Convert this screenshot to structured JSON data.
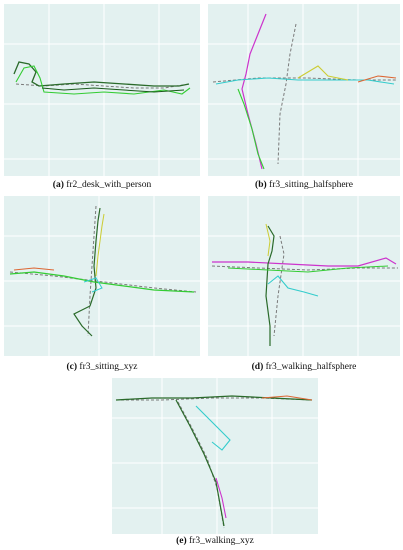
{
  "figure": {
    "panels": [
      {
        "letter": "(a)",
        "label": "fr2_desk_with_person"
      },
      {
        "letter": "(b)",
        "label": "fr3_sitting_halfsphere"
      },
      {
        "letter": "(c)",
        "label": "fr3_sitting_xyz"
      },
      {
        "letter": "(d)",
        "label": "fr3_walking_halfsphere"
      },
      {
        "letter": "(e)",
        "label": "fr3_walking_xyz"
      }
    ],
    "colors": {
      "background": "#e3f1f0",
      "grid": "#ffffff",
      "groundtruth": "#7a7a7a",
      "traj_dark": "#2a6a2a",
      "traj_green": "#33cc33",
      "traj_magenta": "#cc33cc",
      "traj_cyan": "#33cccc",
      "traj_yellow": "#cccc33",
      "traj_orange": "#dd6633"
    }
  }
}
